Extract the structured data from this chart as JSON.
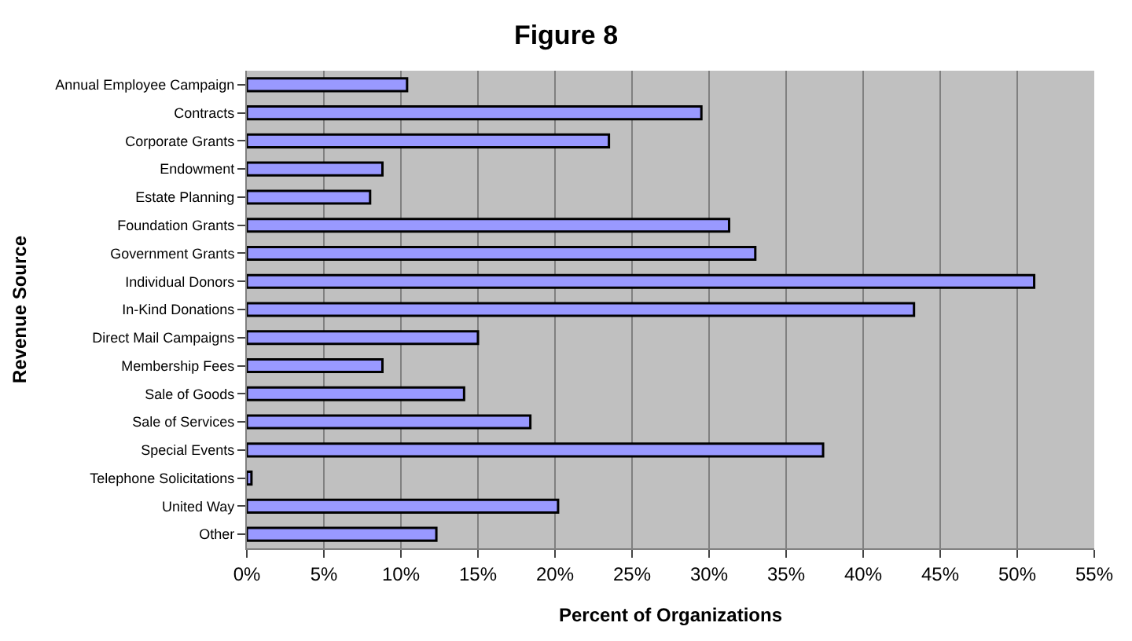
{
  "chart_data": {
    "type": "bar",
    "orientation": "horizontal",
    "title": "Figure 8",
    "xlabel": "Percent of Organizations",
    "ylabel": "Revenue Source",
    "categories": [
      "Annual Employee Campaign",
      "Contracts",
      "Corporate Grants",
      "Endowment",
      "Estate Planning",
      "Foundation Grants",
      "Government Grants",
      "Individual Donors",
      "In-Kind Donations",
      "Direct Mail Campaigns",
      "Membership Fees",
      "Sale of Goods",
      "Sale of Services",
      "Special Events",
      "Telephone Solicitations",
      "United Way",
      "Other"
    ],
    "values": [
      10.4,
      29.5,
      23.5,
      8.8,
      8.0,
      31.3,
      33.0,
      51.1,
      43.3,
      15.0,
      8.8,
      14.1,
      18.4,
      37.4,
      0.3,
      20.2,
      12.3
    ],
    "color": "#9999ff",
    "xlim": [
      0,
      55
    ],
    "xticks": [
      {
        "value": 0,
        "label": "0%"
      },
      {
        "value": 5,
        "label": "5%"
      },
      {
        "value": 10,
        "label": "10%"
      },
      {
        "value": 15,
        "label": "15%"
      },
      {
        "value": 20,
        "label": "20%"
      },
      {
        "value": 25,
        "label": "25%"
      },
      {
        "value": 30,
        "label": "30%"
      },
      {
        "value": 35,
        "label": "35%"
      },
      {
        "value": 40,
        "label": "40%"
      },
      {
        "value": 45,
        "label": "45%"
      },
      {
        "value": 50,
        "label": "50%"
      },
      {
        "value": 55,
        "label": "55%"
      }
    ],
    "grid": "x"
  }
}
